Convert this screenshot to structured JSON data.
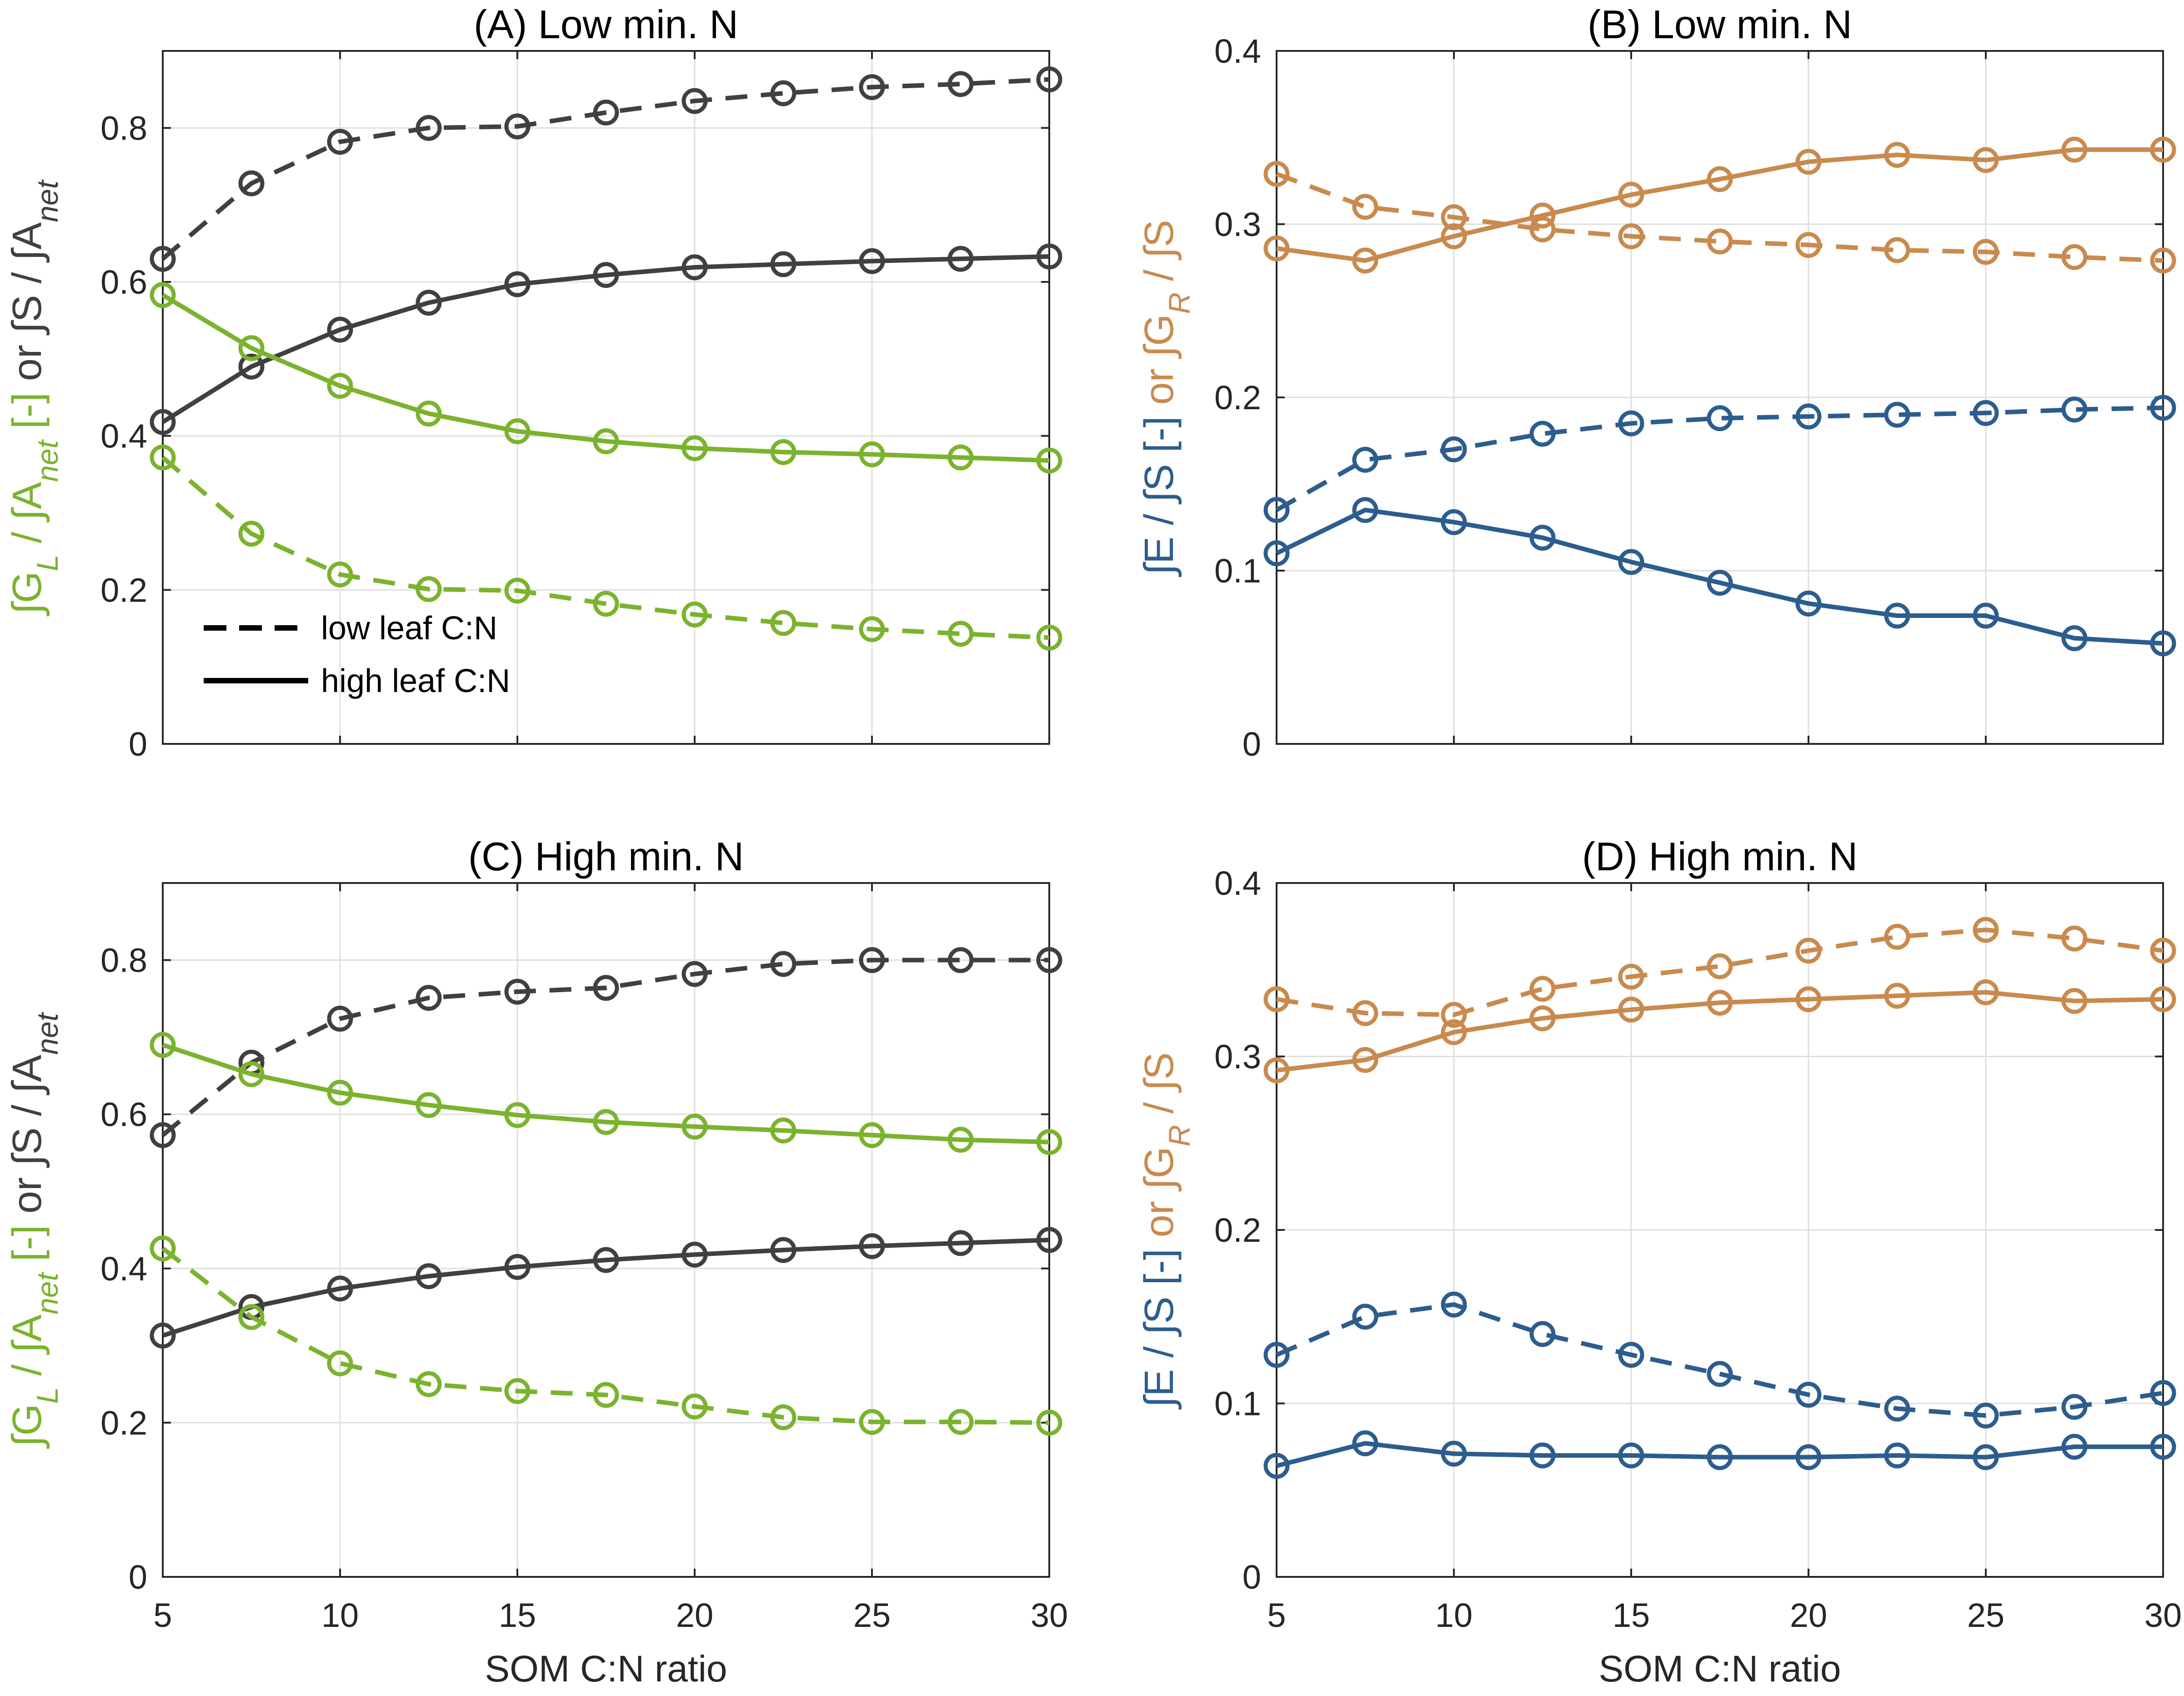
{
  "chart_data": [
    {
      "id": "A",
      "type": "line",
      "title": "(A) Low min. N",
      "xlabel": "",
      "ylabel": [
        {
          "text": "∫G",
          "color": "#7ab32e"
        },
        {
          "text": "L",
          "color": "#7ab32e",
          "sub": true
        },
        {
          "text": " / ∫A",
          "color": "#7ab32e"
        },
        {
          "text": "net",
          "color": "#7ab32e",
          "sub": true
        },
        {
          "text": " [-]",
          "color": "#7ab32e"
        },
        {
          "text": "  or ∫S / ∫A",
          "color": "#404040"
        },
        {
          "text": "net",
          "color": "#404040",
          "sub": true
        }
      ],
      "xlim": [
        5,
        30
      ],
      "ylim": [
        0,
        0.9
      ],
      "xticks": [],
      "yticks": [
        "0",
        "0.2",
        "0.4",
        "0.6",
        "0.8"
      ],
      "grid": true,
      "legend_position": "bottom-left",
      "legend": [
        {
          "label": "low leaf C:N",
          "style": "dashed"
        },
        {
          "label": "high leaf C:N",
          "style": "solid"
        }
      ],
      "x": [
        5,
        7.5,
        10,
        12.5,
        15,
        17.5,
        20,
        22.5,
        25,
        27.5,
        30
      ],
      "series": [
        {
          "color": "#404040",
          "style": "dashed",
          "values": [
            0.63,
            0.728,
            0.782,
            0.8,
            0.802,
            0.82,
            0.835,
            0.845,
            0.853,
            0.857,
            0.863
          ]
        },
        {
          "color": "#404040",
          "style": "solid",
          "values": [
            0.418,
            0.49,
            0.538,
            0.573,
            0.597,
            0.609,
            0.619,
            0.623,
            0.627,
            0.63,
            0.633
          ]
        },
        {
          "color": "#7ab32e",
          "style": "solid",
          "values": [
            0.583,
            0.514,
            0.465,
            0.429,
            0.406,
            0.393,
            0.384,
            0.379,
            0.376,
            0.372,
            0.368
          ]
        },
        {
          "color": "#7ab32e",
          "style": "dashed",
          "values": [
            0.372,
            0.273,
            0.22,
            0.201,
            0.199,
            0.182,
            0.168,
            0.157,
            0.149,
            0.143,
            0.138
          ]
        }
      ]
    },
    {
      "id": "B",
      "type": "line",
      "title": "(B) Low min. N",
      "xlabel": "",
      "ylabel": [
        {
          "text": "∫E / ∫S [-]",
          "color": "#2c5d8e"
        },
        {
          "text": "  or ∫G",
          "color": "#c98a4e"
        },
        {
          "text": "R",
          "color": "#c98a4e",
          "sub": true
        },
        {
          "text": " / ∫S",
          "color": "#c98a4e"
        }
      ],
      "xlim": [
        5,
        30
      ],
      "ylim": [
        0,
        0.4
      ],
      "xticks": [],
      "yticks": [
        "0",
        "0.1",
        "0.2",
        "0.3",
        "0.4"
      ],
      "grid": true,
      "x": [
        5,
        7.5,
        10,
        12.5,
        15,
        17.5,
        20,
        22.5,
        25,
        27.5,
        30
      ],
      "series": [
        {
          "color": "#c98a4e",
          "style": "dashed",
          "values": [
            0.329,
            0.31,
            0.304,
            0.297,
            0.293,
            0.29,
            0.288,
            0.285,
            0.284,
            0.281,
            0.279
          ]
        },
        {
          "color": "#c98a4e",
          "style": "solid",
          "values": [
            0.286,
            0.279,
            0.293,
            0.305,
            0.317,
            0.326,
            0.336,
            0.34,
            0.337,
            0.343,
            0.343
          ]
        },
        {
          "color": "#2c5d8e",
          "style": "dashed",
          "values": [
            0.135,
            0.164,
            0.17,
            0.179,
            0.185,
            0.188,
            0.189,
            0.19,
            0.191,
            0.193,
            0.194
          ]
        },
        {
          "color": "#2c5d8e",
          "style": "solid",
          "values": [
            0.11,
            0.135,
            0.128,
            0.119,
            0.105,
            0.093,
            0.081,
            0.074,
            0.074,
            0.061,
            0.058
          ]
        }
      ]
    },
    {
      "id": "C",
      "type": "line",
      "title": "(C) High min. N",
      "xlabel": "SOM C:N ratio",
      "ylabel": [
        {
          "text": "∫G",
          "color": "#7ab32e"
        },
        {
          "text": "L",
          "color": "#7ab32e",
          "sub": true
        },
        {
          "text": " / ∫A",
          "color": "#7ab32e"
        },
        {
          "text": "net",
          "color": "#7ab32e",
          "sub": true
        },
        {
          "text": " [-]",
          "color": "#7ab32e"
        },
        {
          "text": "  or ∫S / ∫A",
          "color": "#404040"
        },
        {
          "text": "net",
          "color": "#404040",
          "sub": true
        }
      ],
      "xlim": [
        5,
        30
      ],
      "ylim": [
        0,
        0.9
      ],
      "xticks": [
        "5",
        "10",
        "15",
        "20",
        "25",
        "30"
      ],
      "yticks": [
        "0",
        "0.2",
        "0.4",
        "0.6",
        "0.8"
      ],
      "grid": true,
      "x": [
        5,
        7.5,
        10,
        12.5,
        15,
        17.5,
        20,
        22.5,
        25,
        27.5,
        30
      ],
      "series": [
        {
          "color": "#404040",
          "style": "dashed",
          "values": [
            0.573,
            0.667,
            0.724,
            0.751,
            0.759,
            0.764,
            0.782,
            0.795,
            0.8,
            0.8,
            0.8
          ]
        },
        {
          "color": "#404040",
          "style": "solid",
          "values": [
            0.313,
            0.35,
            0.374,
            0.39,
            0.402,
            0.411,
            0.418,
            0.424,
            0.429,
            0.433,
            0.437
          ]
        },
        {
          "color": "#7ab32e",
          "style": "solid",
          "values": [
            0.69,
            0.652,
            0.628,
            0.612,
            0.599,
            0.59,
            0.584,
            0.579,
            0.573,
            0.567,
            0.564
          ]
        },
        {
          "color": "#7ab32e",
          "style": "dashed",
          "values": [
            0.426,
            0.337,
            0.277,
            0.25,
            0.241,
            0.236,
            0.221,
            0.207,
            0.201,
            0.201,
            0.2
          ]
        }
      ]
    },
    {
      "id": "D",
      "type": "line",
      "title": "(D) High min. N",
      "xlabel": "SOM C:N ratio",
      "ylabel": [
        {
          "text": "∫E / ∫S [-]",
          "color": "#2c5d8e"
        },
        {
          "text": "  or ∫G",
          "color": "#c98a4e"
        },
        {
          "text": "R",
          "color": "#c98a4e",
          "sub": true
        },
        {
          "text": " / ∫S",
          "color": "#c98a4e"
        }
      ],
      "xlim": [
        5,
        30
      ],
      "ylim": [
        0,
        0.4
      ],
      "xticks": [
        "5",
        "10",
        "15",
        "20",
        "25",
        "30"
      ],
      "yticks": [
        "0",
        "0.1",
        "0.2",
        "0.3",
        "0.4"
      ],
      "grid": true,
      "x": [
        5,
        7.5,
        10,
        12.5,
        15,
        17.5,
        20,
        22.5,
        25,
        27.5,
        30
      ],
      "series": [
        {
          "color": "#c98a4e",
          "style": "dashed",
          "values": [
            0.333,
            0.325,
            0.324,
            0.339,
            0.346,
            0.352,
            0.361,
            0.369,
            0.373,
            0.368,
            0.361
          ]
        },
        {
          "color": "#c98a4e",
          "style": "solid",
          "values": [
            0.292,
            0.298,
            0.314,
            0.322,
            0.327,
            0.331,
            0.333,
            0.335,
            0.337,
            0.332,
            0.333
          ]
        },
        {
          "color": "#2c5d8e",
          "style": "dashed",
          "values": [
            0.128,
            0.15,
            0.157,
            0.14,
            0.128,
            0.117,
            0.105,
            0.097,
            0.093,
            0.098,
            0.106
          ]
        },
        {
          "color": "#2c5d8e",
          "style": "solid",
          "values": [
            0.064,
            0.077,
            0.071,
            0.07,
            0.07,
            0.069,
            0.069,
            0.07,
            0.069,
            0.075,
            0.075
          ]
        }
      ]
    }
  ]
}
